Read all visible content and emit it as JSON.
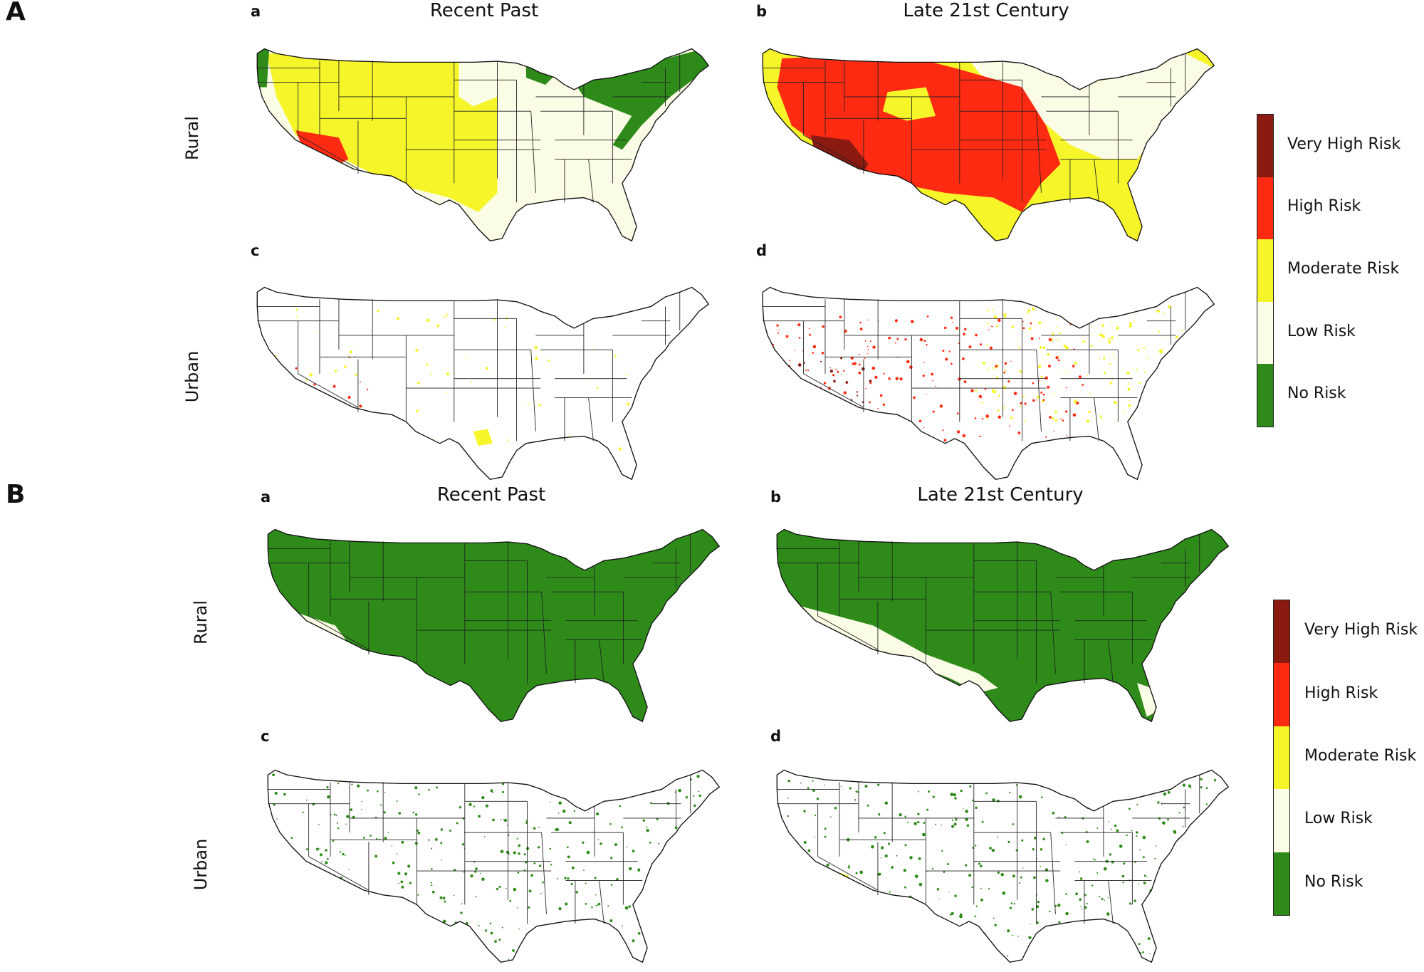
{
  "figure": {
    "panels": [
      {
        "letter": "A",
        "columns": [
          "Recent Past",
          "Late 21st Century"
        ],
        "rows": [
          "Rural",
          "Urban"
        ],
        "subpanels": [
          {
            "letter": "a",
            "fill": "mixedA_past_rural"
          },
          {
            "letter": "b",
            "fill": "mixedA_future_rural"
          },
          {
            "letter": "c",
            "fill": "mixedA_past_urban"
          },
          {
            "letter": "d",
            "fill": "mixedA_future_urban"
          }
        ]
      },
      {
        "letter": "B",
        "columns": [
          "Recent Past",
          "Late 21st Century"
        ],
        "rows": [
          "Rural",
          "Urban"
        ],
        "subpanels": [
          {
            "letter": "a",
            "fill": "greenB_past_rural"
          },
          {
            "letter": "b",
            "fill": "greenB_future_rural"
          },
          {
            "letter": "c",
            "fill": "greenB_past_urban"
          },
          {
            "letter": "d",
            "fill": "greenB_future_urban"
          }
        ]
      }
    ],
    "legend": [
      {
        "label": "Very High Risk",
        "color": "#8b1a10"
      },
      {
        "label": "High Risk",
        "color": "#ff2a12"
      },
      {
        "label": "Moderate Risk",
        "color": "#f5f52a"
      },
      {
        "label": "Low Risk",
        "color": "#fbfce6"
      },
      {
        "label": "No Risk",
        "color": "#2e8b1a"
      }
    ]
  }
}
